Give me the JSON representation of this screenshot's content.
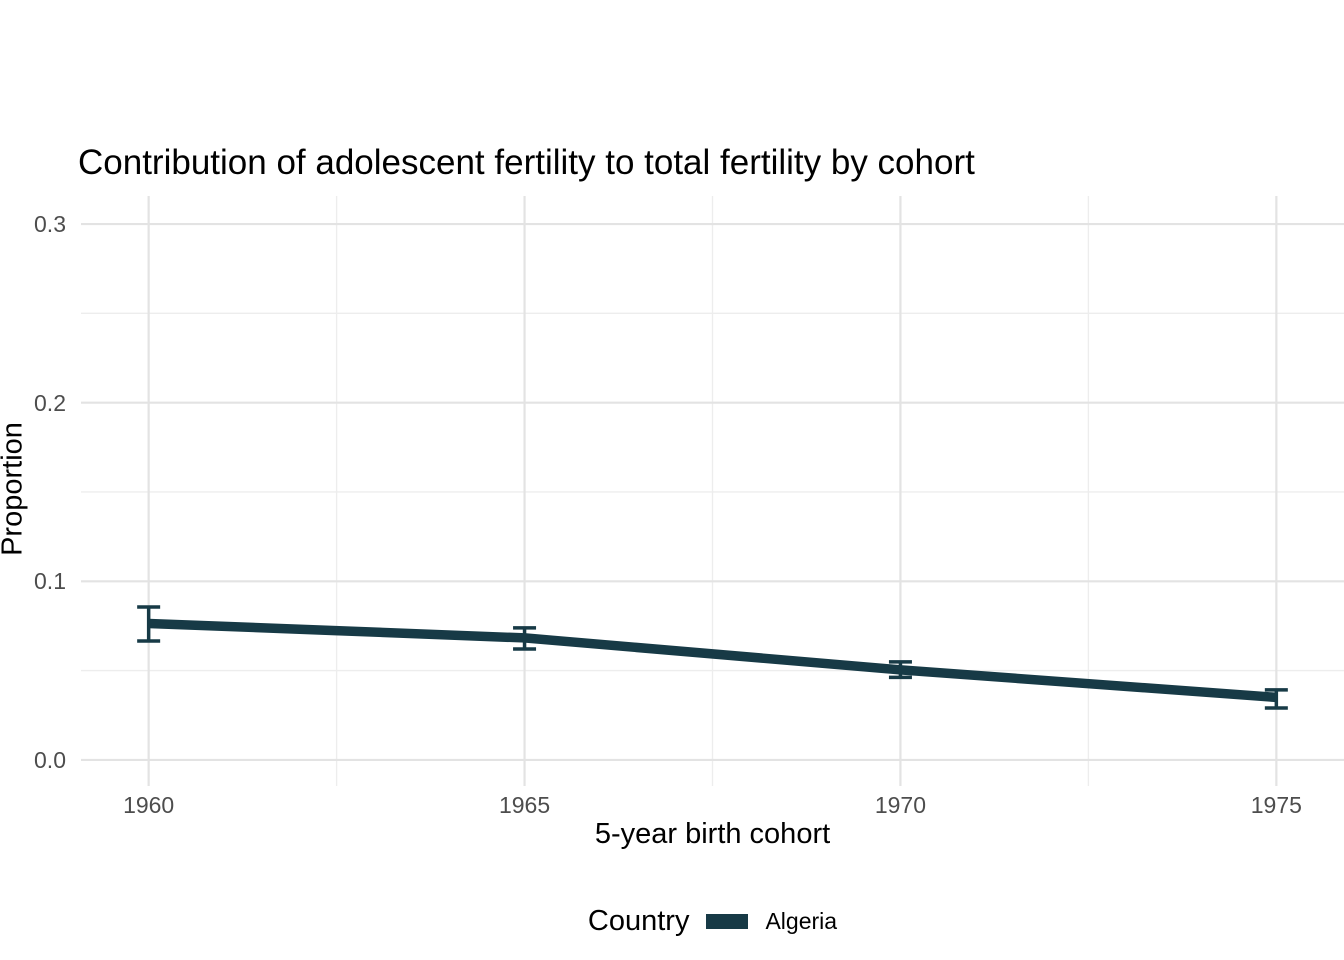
{
  "chart": {
    "title": "Contribution of adolescent fertility to total fertility by cohort",
    "xlabel": "5-year birth cohort",
    "ylabel": "Proportion"
  },
  "legend": {
    "title": "Country",
    "items": [
      {
        "label": "Algeria",
        "color": "#173a46"
      }
    ]
  },
  "colors": {
    "series": "#173a46",
    "grid_major": "#e3e3e3",
    "grid_minor": "#ededed",
    "tick_text": "#4d4d4d",
    "title_text": "#000000",
    "background": "#ffffff"
  },
  "chart_data": {
    "type": "line",
    "title": "Contribution of adolescent fertility to total fertility by cohort",
    "xlabel": "5-year birth cohort",
    "ylabel": "Proportion",
    "xlim": [
      1959.1,
      1975.9
    ],
    "ylim": [
      -0.0146,
      0.3157
    ],
    "x_ticks": [
      1960,
      1965,
      1970,
      1975
    ],
    "x_tick_labels": [
      "1960",
      "1965",
      "1970",
      "1975"
    ],
    "x_minor_ticks": [
      1962.5,
      1967.5,
      1972.5
    ],
    "y_ticks": [
      0.0,
      0.1,
      0.2,
      0.3
    ],
    "y_tick_labels": [
      "0.0",
      "0.1",
      "0.2",
      "0.3"
    ],
    "y_minor_ticks": [
      0.05,
      0.15,
      0.25
    ],
    "grid": "on",
    "legend_position": "bottom",
    "series": [
      {
        "name": "Algeria",
        "color": "#173a46",
        "x": [
          1960,
          1965,
          1970,
          1975
        ],
        "y": [
          0.0764,
          0.0683,
          0.0504,
          0.035
        ],
        "ci_low": [
          0.0666,
          0.0621,
          0.0462,
          0.0291
        ],
        "ci_high": [
          0.0856,
          0.0739,
          0.0549,
          0.0392
        ]
      }
    ]
  }
}
